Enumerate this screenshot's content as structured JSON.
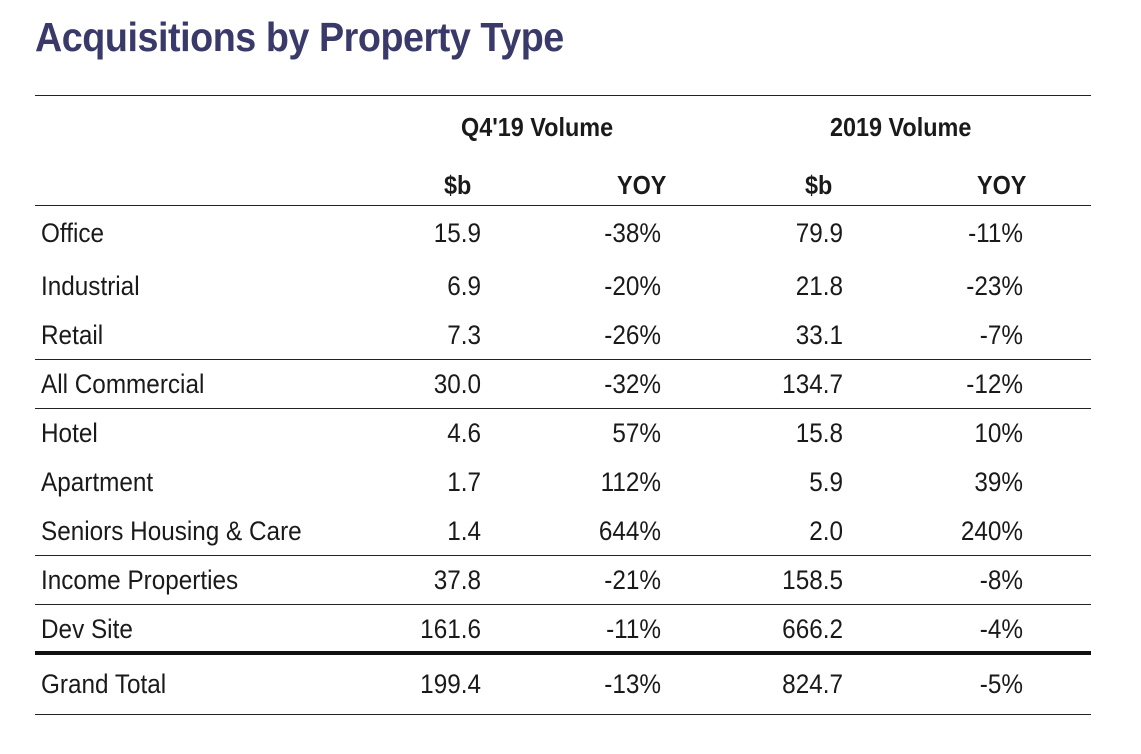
{
  "title": "Acquisitions by Property Type",
  "groups": {
    "q4": "Q4'19 Volume",
    "y2019": "2019 Volume"
  },
  "subheaders": {
    "q4_vol": "$b",
    "q4_yoy": "YOY",
    "y_vol": "$b",
    "y_yoy": "YOY"
  },
  "rows": [
    {
      "label": "Office",
      "q4_vol": "15.9",
      "q4_yoy": "-38%",
      "y_vol": "79.9",
      "y_yoy": "-11%"
    },
    {
      "label": "Industrial",
      "q4_vol": "6.9",
      "q4_yoy": "-20%",
      "y_vol": "21.8",
      "y_yoy": "-23%"
    },
    {
      "label": "Retail",
      "q4_vol": "7.3",
      "q4_yoy": "-26%",
      "y_vol": "33.1",
      "y_yoy": "-7%"
    },
    {
      "label": "All Commercial",
      "q4_vol": "30.0",
      "q4_yoy": "-32%",
      "y_vol": "134.7",
      "y_yoy": "-12%"
    },
    {
      "label": "Hotel",
      "q4_vol": "4.6",
      "q4_yoy": "57%",
      "y_vol": "15.8",
      "y_yoy": "10%"
    },
    {
      "label": "Apartment",
      "q4_vol": "1.7",
      "q4_yoy": "112%",
      "y_vol": "5.9",
      "y_yoy": "39%"
    },
    {
      "label": "Seniors Housing & Care",
      "q4_vol": "1.4",
      "q4_yoy": "644%",
      "y_vol": "2.0",
      "y_yoy": "240%"
    },
    {
      "label": "Income Properties",
      "q4_vol": "37.8",
      "q4_yoy": "-21%",
      "y_vol": "158.5",
      "y_yoy": "-8%"
    },
    {
      "label": "Dev Site",
      "q4_vol": "161.6",
      "q4_yoy": "-11%",
      "y_vol": "666.2",
      "y_yoy": "-4%"
    },
    {
      "label": "Grand Total",
      "q4_vol": "199.4",
      "q4_yoy": "-13%",
      "y_vol": "824.7",
      "y_yoy": "-5%"
    }
  ],
  "colors": {
    "title": "#3a3a6a",
    "text": "#1a1a1a",
    "rule": "#222222"
  }
}
